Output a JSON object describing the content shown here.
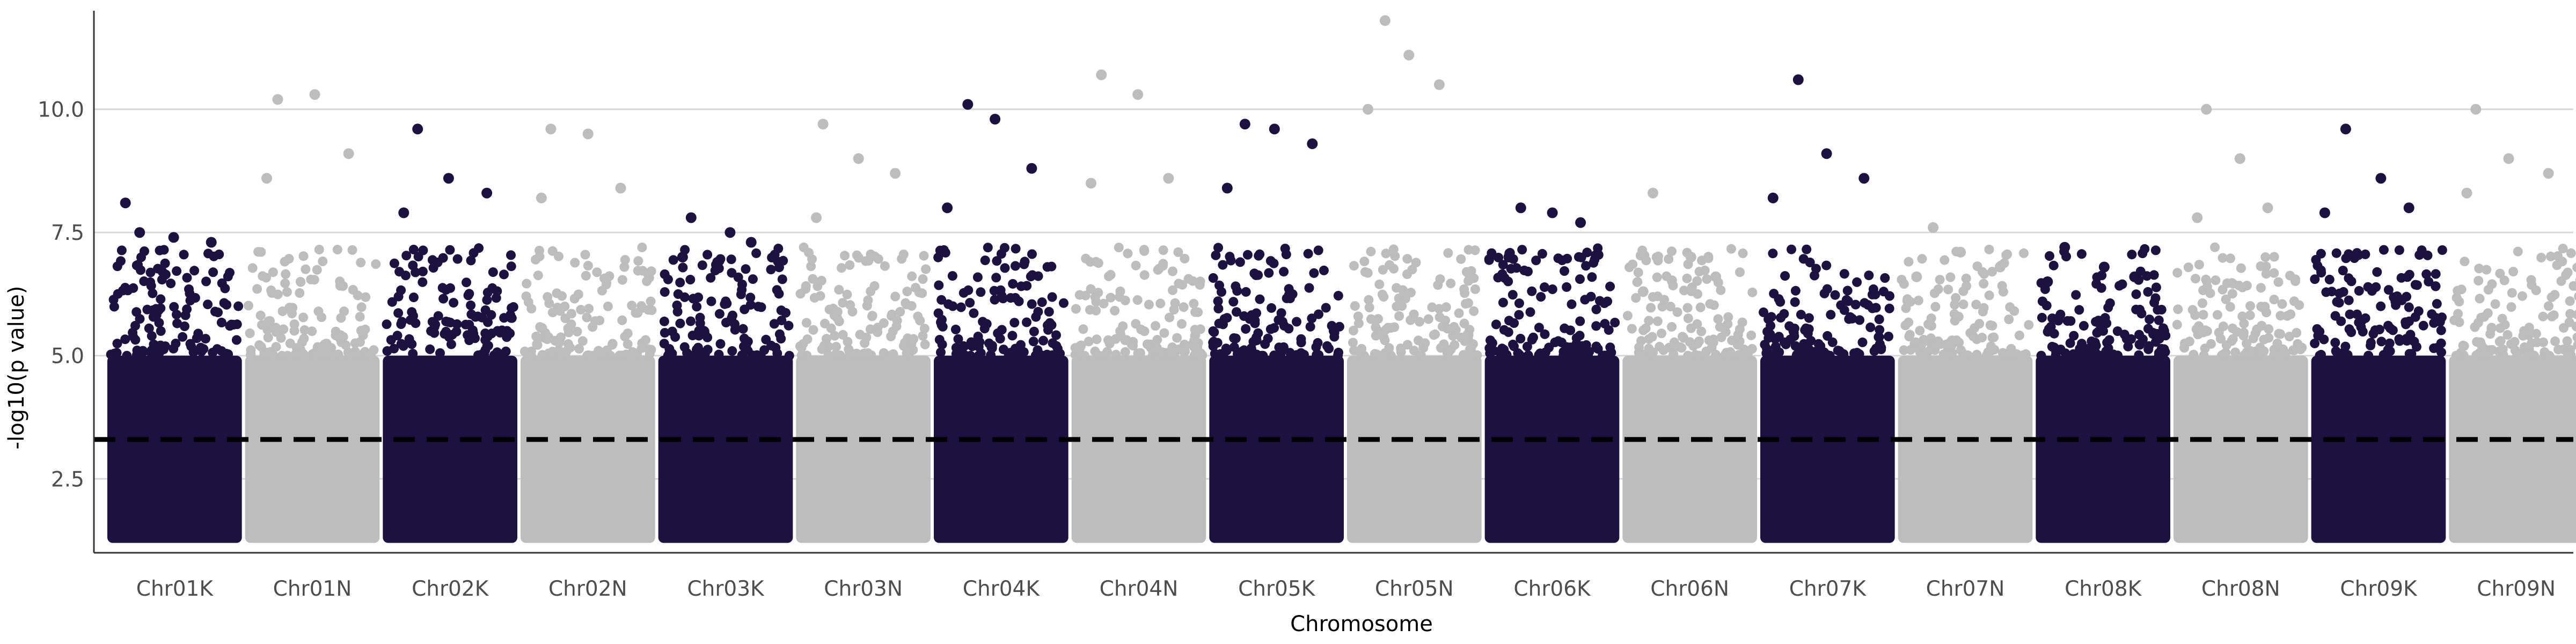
{
  "chart_data": {
    "type": "scatter",
    "xlabel": "Chromosome",
    "ylabel": "-log10(p value)",
    "ylim": [
      1.0,
      12.0
    ],
    "yticks": [
      2.5,
      5.0,
      7.5,
      10.0
    ],
    "ytick_labels": [
      "2.5",
      "5.0",
      "7.5",
      "10.0"
    ],
    "grid": "horizontal major gridlines only",
    "threshold": 3.3,
    "colors": {
      "dark": "#1c1140",
      "light": "#bdbdbd",
      "threshold_line": "#000000",
      "grid": "#d9d9d9"
    },
    "chromosomes": [
      {
        "name": "Chr01K",
        "color": "dark",
        "peak": 8.1,
        "top_points": [
          7.5,
          7.4,
          7.3,
          8.1
        ]
      },
      {
        "name": "Chr01N",
        "color": "light",
        "peak": 10.3,
        "top_points": [
          10.2,
          10.3,
          9.1,
          8.6
        ]
      },
      {
        "name": "Chr02K",
        "color": "dark",
        "peak": 9.6,
        "top_points": [
          9.6,
          8.6,
          8.3,
          7.9
        ]
      },
      {
        "name": "Chr02N",
        "color": "light",
        "peak": 9.6,
        "top_points": [
          9.6,
          9.5,
          8.4,
          8.2
        ]
      },
      {
        "name": "Chr03K",
        "color": "dark",
        "peak": 7.8,
        "top_points": [
          7.8,
          7.5,
          7.3,
          7.0
        ]
      },
      {
        "name": "Chr03N",
        "color": "light",
        "peak": 9.7,
        "top_points": [
          9.7,
          9.0,
          8.7,
          7.8
        ]
      },
      {
        "name": "Chr04K",
        "color": "dark",
        "peak": 10.1,
        "top_points": [
          10.1,
          9.8,
          8.8,
          8.0
        ]
      },
      {
        "name": "Chr04N",
        "color": "light",
        "peak": 10.7,
        "top_points": [
          10.7,
          10.3,
          8.6,
          8.5
        ]
      },
      {
        "name": "Chr05K",
        "color": "dark",
        "peak": 9.7,
        "top_points": [
          9.7,
          9.6,
          9.3,
          8.4
        ]
      },
      {
        "name": "Chr05N",
        "color": "light",
        "peak": 11.8,
        "top_points": [
          11.8,
          11.1,
          10.5,
          10.0
        ]
      },
      {
        "name": "Chr06K",
        "color": "dark",
        "peak": 8.0,
        "top_points": [
          8.0,
          7.9,
          7.7,
          7.0
        ]
      },
      {
        "name": "Chr06N",
        "color": "light",
        "peak": 8.3,
        "top_points": [
          8.3,
          7.0,
          6.6,
          6.3
        ]
      },
      {
        "name": "Chr07K",
        "color": "dark",
        "peak": 10.6,
        "top_points": [
          10.6,
          9.1,
          8.6,
          8.2
        ]
      },
      {
        "name": "Chr07N",
        "color": "light",
        "peak": 7.6,
        "top_points": [
          7.6,
          7.1,
          6.8,
          6.6
        ]
      },
      {
        "name": "Chr08K",
        "color": "dark",
        "peak": 7.2,
        "top_points": [
          7.2,
          6.8,
          6.6,
          6.5
        ]
      },
      {
        "name": "Chr08N",
        "color": "light",
        "peak": 10.0,
        "top_points": [
          10.0,
          9.0,
          8.0,
          7.8
        ]
      },
      {
        "name": "Chr09K",
        "color": "dark",
        "peak": 9.6,
        "top_points": [
          9.6,
          8.6,
          8.0,
          7.9
        ]
      },
      {
        "name": "Chr09N",
        "color": "light",
        "peak": 10.0,
        "top_points": [
          10.0,
          9.0,
          8.7,
          8.3
        ]
      }
    ]
  }
}
